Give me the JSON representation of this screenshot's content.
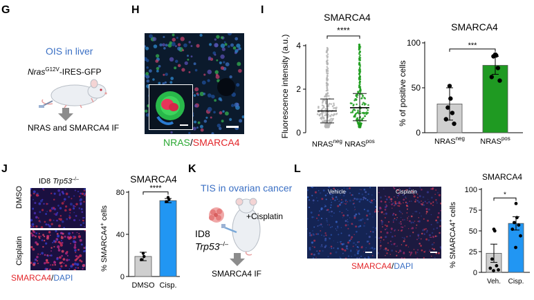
{
  "panels": {
    "G": {
      "letter": "G",
      "title": "OIS in liver",
      "construct_gene": "Nras",
      "construct_sup": "G12V",
      "construct_rest": "-IRES-GFP",
      "readout": "NRAS and SMARCA4 IF"
    },
    "H": {
      "letter": "H",
      "legend_green": "NRAS",
      "legend_sep": "/",
      "legend_red": "SMARCA4"
    },
    "I": {
      "letter": "I",
      "left": {
        "title": "SMARCA4",
        "ylabel": "Fluorescence intensity (a.u.)",
        "yticks": [
          "0",
          "2",
          "4"
        ],
        "sig": "****",
        "groups": [
          {
            "base": "NRAS",
            "sup": "neg",
            "color": "#b5b5b5",
            "mean": 1.0,
            "sd_low": 0.45,
            "sd_high": 1.55
          },
          {
            "base": "NRAS",
            "sup": "pos",
            "color": "#1e9e1e",
            "mean": 1.15,
            "sd_low": 0.55,
            "sd_high": 1.8
          }
        ]
      },
      "right": {
        "title": "SMARCA4",
        "ylabel": "% of positive cells",
        "yticks": [
          "0",
          "50",
          "100"
        ],
        "sig": "***",
        "groups": [
          {
            "base": "NRAS",
            "sup": "neg",
            "color": "#cfcfcf",
            "mean": 32,
            "sem": 18,
            "points": [
              52,
              38,
              28,
              22,
              15,
              10
            ]
          },
          {
            "base": "NRAS",
            "sup": "pos",
            "color": "#1f9a22",
            "mean": 75,
            "sem": 10,
            "points": [
              87,
              86,
              85,
              72,
              62,
              58
            ]
          }
        ]
      }
    },
    "J": {
      "letter": "J",
      "model_a": "ID8 ",
      "model_b": "Trp53",
      "model_sup": "–/–",
      "row1": "DMSO",
      "row2": "Cisplatin",
      "legend_red": "SMARCA4",
      "legend_sep": "/",
      "legend_blue": "DAPI",
      "chart": {
        "title": "SMARCA4",
        "ylabel": "% SMARCA4",
        "ylabel_sup": "+",
        "ylabel_tail": " cells",
        "yticks": [
          "0",
          "40",
          "80"
        ],
        "sig": "****",
        "groups": [
          {
            "label": "DMSO",
            "color": "#cfcfcf",
            "mean": 19,
            "err": 4,
            "points": [
              22,
              19,
              16
            ]
          },
          {
            "label": "Cisp.",
            "color": "#2196f3",
            "mean": 72,
            "err": 2,
            "points": [
              75,
              73,
              71
            ]
          }
        ]
      }
    },
    "K": {
      "letter": "K",
      "title": "TIS in ovarian cancer",
      "model_a": "ID8",
      "model_b": "Trp53",
      "model_sup": "–/–",
      "treatment": "+Cisplatin",
      "readout": "SMARCA4 IF"
    },
    "L": {
      "letter": "L",
      "img1_label": "Vehicle",
      "img2_label": "Cisplatin",
      "legend_red": "SMARCA4",
      "legend_sep": "/",
      "legend_blue": "DAPI",
      "chart": {
        "title": "SMARCA4",
        "ylabel": "% SMARCA4",
        "ylabel_sup": "+",
        "ylabel_tail": " cells",
        "yticks": [
          "0",
          "25",
          "50",
          "75",
          "100"
        ],
        "sig": "*",
        "groups": [
          {
            "label": "Veh.",
            "color": "#cfcfcf",
            "mean": 23,
            "err": 11,
            "points": [
              52,
              50,
              16,
              8,
              5,
              3,
              2
            ]
          },
          {
            "label": "Cisp.",
            "color": "#2196f3",
            "mean": 59,
            "err": 8,
            "points": [
              83,
              66,
              60,
              57,
              52,
              44,
              30
            ]
          }
        ]
      }
    }
  },
  "chart_data": [
    {
      "type": "scatter",
      "panel": "I-left",
      "title": "SMARCA4",
      "ylabel": "Fluorescence intensity (a.u.)",
      "ylim": [
        0,
        4
      ],
      "categories": [
        "NRASneg",
        "NRASpos"
      ],
      "series": [
        {
          "values": [
            1.0,
            1.15
          ]
        }
      ]
    },
    {
      "type": "bar",
      "panel": "I-right",
      "title": "SMARCA4",
      "ylabel": "% of positive cells",
      "ylim": [
        0,
        100
      ],
      "categories": [
        "NRASneg",
        "NRASpos"
      ],
      "values": [
        32,
        75
      ]
    },
    {
      "type": "bar",
      "panel": "J",
      "title": "SMARCA4",
      "ylabel": "% SMARCA4+ cells",
      "ylim": [
        0,
        80
      ],
      "categories": [
        "DMSO",
        "Cisp."
      ],
      "values": [
        19,
        72
      ]
    },
    {
      "type": "bar",
      "panel": "L",
      "title": "SMARCA4",
      "ylabel": "% SMARCA4+ cells",
      "ylim": [
        0,
        100
      ],
      "categories": [
        "Veh.",
        "Cisp."
      ],
      "values": [
        23,
        59
      ]
    }
  ]
}
